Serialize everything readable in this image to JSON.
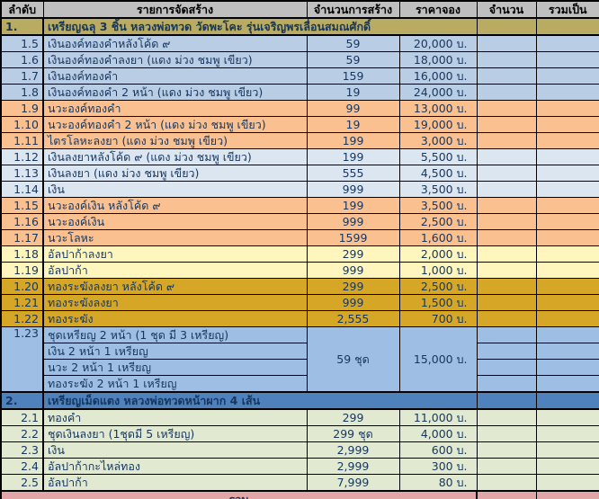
{
  "palette": {
    "header_bg": "#BFBFBF",
    "header_text": "#000000",
    "body_text": "#17365D",
    "grid": "#000000",
    "section1_bg": "#B9AC62",
    "section2_bg": "#4F81BD",
    "footer_bg": "#E2A6A6",
    "themes": {
      "blue": "#B9CDE5",
      "peach": "#FAC090",
      "bluegray": "#DCE6F1",
      "yellow": "#FFF6BE",
      "gold": "#D6A726",
      "block": "#9EBEE3",
      "green": "#E1E9D0"
    }
  },
  "table": {
    "columns": [
      "ลำดับ",
      "รายการจัดสร้าง",
      "จำนวนการสร้าง",
      "ราคาจอง",
      "จำนวน",
      "รวมเป็น"
    ],
    "rows": [
      {
        "type": "section",
        "no": "1.",
        "title": "เหรียญฉลุ 3 ชิ้น หลวงพ่อทวด วัดพะโคะ รุ่นเจริญพรเลื่อนสมณศักดิ์",
        "theme": "section1"
      },
      {
        "type": "item",
        "no": "1.5",
        "desc": "เงินองค์ทองคำหลังโค้ด ๙",
        "qty": "59",
        "price": "20,000 บ.",
        "theme": "blue"
      },
      {
        "type": "item",
        "no": "1.6",
        "desc": "เงินองค์ทองคำลงยา (แดง ม่วง ชมพู เขียว)",
        "qty": "59",
        "price": "18,000 บ.",
        "theme": "blue"
      },
      {
        "type": "item",
        "no": "1.7",
        "desc": "เงินองค์ทองคำ",
        "qty": "159",
        "price": "16,000 บ.",
        "theme": "blue"
      },
      {
        "type": "item",
        "no": "1.8",
        "desc": "เงินองค์ทองคำ 2 หน้า (แดง ม่วง ชมพู เขียว)",
        "qty": "19",
        "price": "24,000 บ.",
        "theme": "blue"
      },
      {
        "type": "item",
        "no": "1.9",
        "desc": "นวะองค์ทองคำ",
        "qty": "99",
        "price": "13,000 บ.",
        "theme": "peach"
      },
      {
        "type": "item",
        "no": "1.10",
        "desc": "นวะองค์ทองคำ 2 หน้า (แดง ม่วง ชมพู เขียว)",
        "qty": "19",
        "price": "19,000 บ.",
        "theme": "peach"
      },
      {
        "type": "item",
        "no": "1.11",
        "desc": "ไตรโลหะลงยา (แดง ม่วง ชมพู เขียว)",
        "qty": "199",
        "price": "3,000 บ.",
        "theme": "peach"
      },
      {
        "type": "item",
        "no": "1.12",
        "desc": "เงินลงยาหลังโค้ด ๙ (แดง ม่วง ชมพู เขียว)",
        "qty": "199",
        "price": "5,500 บ.",
        "theme": "bluegray"
      },
      {
        "type": "item",
        "no": "1.13",
        "desc": "เงินลงยา (แดง ม่วง ชมพู เขียว)",
        "qty": "555",
        "price": "4,500 บ.",
        "theme": "bluegray"
      },
      {
        "type": "item",
        "no": "1.14",
        "desc": "เงิน",
        "qty": "999",
        "price": "3,500 บ.",
        "theme": "bluegray"
      },
      {
        "type": "item",
        "no": "1.15",
        "desc": "นวะองค์เงิน หลังโค้ด ๙",
        "qty": "199",
        "price": "3,500 บ.",
        "theme": "peach"
      },
      {
        "type": "item",
        "no": "1.16",
        "desc": "นวะองค์เงิน",
        "qty": "999",
        "price": "2,500 บ.",
        "theme": "peach"
      },
      {
        "type": "item",
        "no": "1.17",
        "desc": "นวะโลหะ",
        "qty": "1599",
        "price": "1,600 บ.",
        "theme": "peach"
      },
      {
        "type": "item",
        "no": "1.18",
        "desc": "อัลปาก้าลงยา",
        "qty": "299",
        "price": "2,000 บ.",
        "theme": "yellow"
      },
      {
        "type": "item",
        "no": "1.19",
        "desc": "อัลปาก้า",
        "qty": "999",
        "price": "1,000 บ.",
        "theme": "yellow"
      },
      {
        "type": "item",
        "no": "1.20",
        "desc": "ทองระฆังลงยา หลังโค้ด ๙",
        "qty": "299",
        "price": "2,500 บ.",
        "theme": "gold"
      },
      {
        "type": "item",
        "no": "1.21",
        "desc": "ทองระฆังลงยา",
        "qty": "999",
        "price": "1,500 บ.",
        "theme": "gold"
      },
      {
        "type": "item",
        "no": "1.22",
        "desc": "ทองระฆัง",
        "qty": "2,555",
        "price": "700 บ.",
        "theme": "gold"
      },
      {
        "type": "group",
        "no": "1.23",
        "title": "ชุดเหรียญ 2 หน้า (1 ชุด มี 3 เหรียญ)",
        "subitems": [
          "เงิน 2 หน้า 1 เหรียญ",
          "นวะ 2 หน้า 1 เหรียญ",
          "ทองระฆัง 2 หน้า 1 เหรียญ"
        ],
        "qty": "59 ชุด",
        "price": "15,000 บ.",
        "theme": "block"
      },
      {
        "type": "section",
        "no": "2.",
        "title": "เหรียญเม็ดแตง หลวงพ่อทวดหน้าผาก 4 เส้น",
        "theme": "section2"
      },
      {
        "type": "item",
        "no": "2.1",
        "desc": "ทองคำ",
        "qty": "299",
        "price": "11,000 บ.",
        "theme": "green"
      },
      {
        "type": "item",
        "no": "2.2",
        "desc": "ชุดเงินลงยา (1ชุดมี 5 เหรียญ)",
        "qty": "299 ชุด",
        "price": "4,000 บ.",
        "theme": "green"
      },
      {
        "type": "item",
        "no": "2.3",
        "desc": "เงิน",
        "qty": "2,999",
        "price": "600 บ.",
        "theme": "green"
      },
      {
        "type": "item",
        "no": "2.4",
        "desc": "อัลปาก้ากะไหล่ทอง",
        "qty": "2,999",
        "price": "300 บ.",
        "theme": "green"
      },
      {
        "type": "item",
        "no": "2.5",
        "desc": "อัลปาก้า",
        "qty": "7,999",
        "price": "80 บ.",
        "theme": "green"
      },
      {
        "type": "footer",
        "label": "รวม"
      }
    ]
  }
}
